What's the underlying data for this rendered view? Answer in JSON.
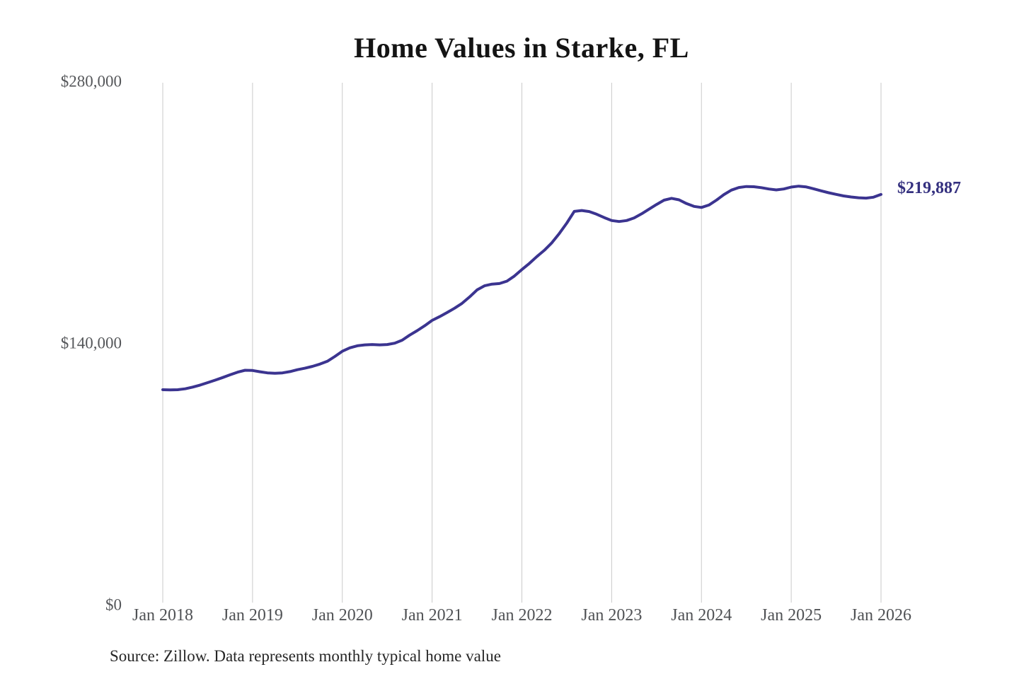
{
  "chart_data": {
    "type": "line",
    "title": "Home Values in Starke, FL",
    "xlabel": "",
    "ylabel": "",
    "ylim": [
      0,
      280000
    ],
    "grid": "vertical-only",
    "legend": "none",
    "y_ticks": [
      {
        "label": "$0",
        "value": 0
      },
      {
        "label": "$140,000",
        "value": 140000
      },
      {
        "label": "$280,000",
        "value": 280000
      }
    ],
    "x_ticks": [
      {
        "label": "Jan 2018",
        "month": 0
      },
      {
        "label": "Jan 2019",
        "month": 12
      },
      {
        "label": "Jan 2020",
        "month": 24
      },
      {
        "label": "Jan 2021",
        "month": 36
      },
      {
        "label": "Jan 2022",
        "month": 48
      },
      {
        "label": "Jan 2023",
        "month": 60
      },
      {
        "label": "Jan 2024",
        "month": 72
      },
      {
        "label": "Jan 2025",
        "month": 84
      },
      {
        "label": "Jan 2026",
        "month": 96
      }
    ],
    "series": [
      {
        "name": "Monthly typical home value",
        "color": "#3b3490",
        "x_unit": "months since Jan 2018",
        "points": [
          [
            0,
            115400
          ],
          [
            1,
            115300
          ],
          [
            2,
            115400
          ],
          [
            3,
            115900
          ],
          [
            4,
            116800
          ],
          [
            5,
            117900
          ],
          [
            6,
            119200
          ],
          [
            7,
            120500
          ],
          [
            8,
            121900
          ],
          [
            9,
            123400
          ],
          [
            10,
            124800
          ],
          [
            11,
            125800
          ],
          [
            12,
            125700
          ],
          [
            13,
            125000
          ],
          [
            14,
            124400
          ],
          [
            15,
            124200
          ],
          [
            16,
            124400
          ],
          [
            17,
            125100
          ],
          [
            18,
            126100
          ],
          [
            19,
            126900
          ],
          [
            20,
            127900
          ],
          [
            21,
            129100
          ],
          [
            22,
            130600
          ],
          [
            23,
            133200
          ],
          [
            24,
            136000
          ],
          [
            25,
            137800
          ],
          [
            26,
            138900
          ],
          [
            27,
            139400
          ],
          [
            28,
            139600
          ],
          [
            29,
            139400
          ],
          [
            30,
            139600
          ],
          [
            31,
            140300
          ],
          [
            32,
            141900
          ],
          [
            33,
            144600
          ],
          [
            34,
            147000
          ],
          [
            35,
            149600
          ],
          [
            36,
            152500
          ],
          [
            37,
            154500
          ],
          [
            38,
            156700
          ],
          [
            39,
            159000
          ],
          [
            40,
            161600
          ],
          [
            41,
            165000
          ],
          [
            42,
            168800
          ],
          [
            43,
            171000
          ],
          [
            44,
            171900
          ],
          [
            45,
            172200
          ],
          [
            46,
            173500
          ],
          [
            47,
            176200
          ],
          [
            48,
            179700
          ],
          [
            49,
            183000
          ],
          [
            50,
            186600
          ],
          [
            51,
            190000
          ],
          [
            52,
            194000
          ],
          [
            53,
            199000
          ],
          [
            54,
            204500
          ],
          [
            55,
            210800
          ],
          [
            56,
            211300
          ],
          [
            57,
            210700
          ],
          [
            58,
            209300
          ],
          [
            59,
            207500
          ],
          [
            60,
            205900
          ],
          [
            61,
            205400
          ],
          [
            62,
            205900
          ],
          [
            63,
            207300
          ],
          [
            64,
            209500
          ],
          [
            65,
            212000
          ],
          [
            66,
            214500
          ],
          [
            67,
            216800
          ],
          [
            68,
            217800
          ],
          [
            69,
            217000
          ],
          [
            70,
            215000
          ],
          [
            71,
            213500
          ],
          [
            72,
            212900
          ],
          [
            73,
            214200
          ],
          [
            74,
            216800
          ],
          [
            75,
            219800
          ],
          [
            76,
            222200
          ],
          [
            77,
            223600
          ],
          [
            78,
            224100
          ],
          [
            79,
            224000
          ],
          [
            80,
            223500
          ],
          [
            81,
            222800
          ],
          [
            82,
            222300
          ],
          [
            83,
            222800
          ],
          [
            84,
            223800
          ],
          [
            85,
            224300
          ],
          [
            86,
            223900
          ],
          [
            87,
            222900
          ],
          [
            88,
            221800
          ],
          [
            89,
            220800
          ],
          [
            90,
            219900
          ],
          [
            91,
            219100
          ],
          [
            92,
            218500
          ],
          [
            93,
            218100
          ],
          [
            94,
            217900
          ],
          [
            95,
            218400
          ],
          [
            96,
            219887
          ]
        ]
      }
    ],
    "latest_value": 219887,
    "latest_value_label": "$219,887"
  },
  "footer": {
    "source": "Source: Zillow. Data represents monthly typical home value"
  },
  "colors": {
    "line": "#3b3490",
    "latest_label": "#34307f",
    "gridline": "#cacaca",
    "axis_text": "#55575a",
    "title_text": "#141414",
    "source_text": "#262626",
    "background": "#ffffff"
  }
}
